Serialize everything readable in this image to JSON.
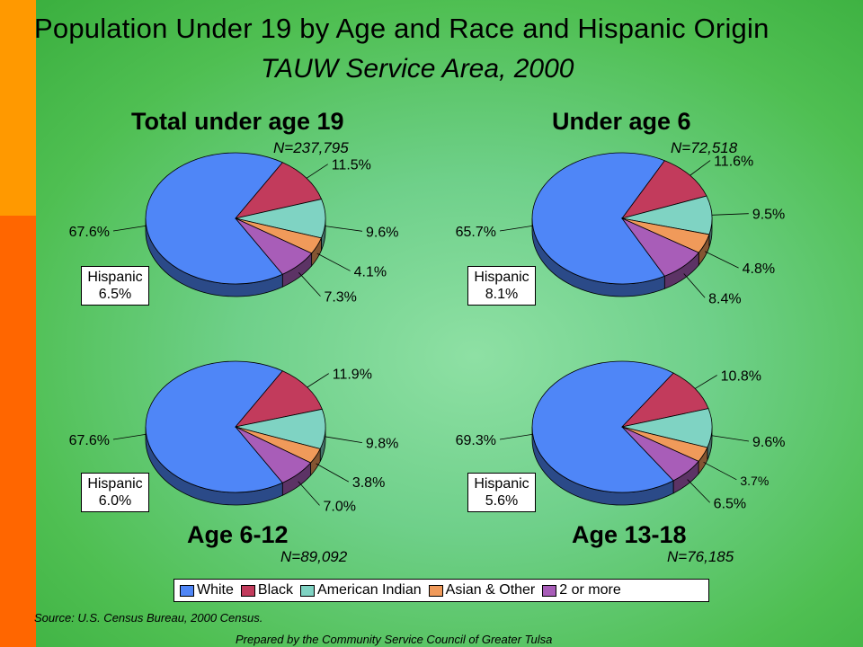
{
  "header": {
    "title": "Population Under 19 by Age and Race and Hispanic Origin",
    "subtitle": "TAUW Service Area, 2000"
  },
  "colors": {
    "White": "#4f86f7",
    "Black": "#c23b5c",
    "American Indian": "#7fd3c3",
    "Asian & Other": "#f09a5a",
    "2 or more": "#a85db8"
  },
  "legend": {
    "items": [
      "White",
      "Black",
      "American Indian",
      "Asian & Other",
      "2 or more"
    ]
  },
  "chart_data": [
    {
      "type": "pie",
      "title": "Total under age 19",
      "n_label": "N=237,795",
      "hispanic_label": "Hispanic",
      "hispanic_value": "6.5%",
      "categories": [
        "White",
        "Black",
        "American Indian",
        "Asian & Other",
        "2 or more"
      ],
      "values": [
        67.6,
        11.5,
        9.6,
        4.1,
        7.3
      ],
      "labels": [
        "67.6%",
        "11.5%",
        "9.6%",
        "4.1%",
        "7.3%"
      ]
    },
    {
      "type": "pie",
      "title": "Under age 6",
      "n_label": "N=72,518",
      "hispanic_label": "Hispanic",
      "hispanic_value": "8.1%",
      "categories": [
        "White",
        "Black",
        "American Indian",
        "Asian & Other",
        "2 or more"
      ],
      "values": [
        65.7,
        11.6,
        9.5,
        4.8,
        8.4
      ],
      "labels": [
        "65.7%",
        "11.6%",
        "9.5%",
        "4.8%",
        "8.4%"
      ]
    },
    {
      "type": "pie",
      "title": "Age 6-12",
      "n_label": "N=89,092",
      "hispanic_label": "Hispanic",
      "hispanic_value": "6.0%",
      "categories": [
        "White",
        "Black",
        "American Indian",
        "Asian & Other",
        "2 or more"
      ],
      "values": [
        67.6,
        11.9,
        9.8,
        3.8,
        7.0
      ],
      "labels": [
        "67.6%",
        "11.9%",
        "9.8%",
        "3.8%",
        "7.0%"
      ]
    },
    {
      "type": "pie",
      "title": "Age 13-18",
      "n_label": "N=76,185",
      "hispanic_label": "Hispanic",
      "hispanic_value": "5.6%",
      "categories": [
        "White",
        "Black",
        "American Indian",
        "Asian & Other",
        "2 or more"
      ],
      "values": [
        69.3,
        10.8,
        9.6,
        3.7,
        6.5
      ],
      "labels": [
        "69.3%",
        "10.8%",
        "9.6%",
        "3.7%",
        "6.5%"
      ]
    }
  ],
  "footer": {
    "source": "Source:  U.S. Census Bureau, 2000 Census.",
    "credit": "Prepared by the Community Service Council of Greater Tulsa"
  }
}
